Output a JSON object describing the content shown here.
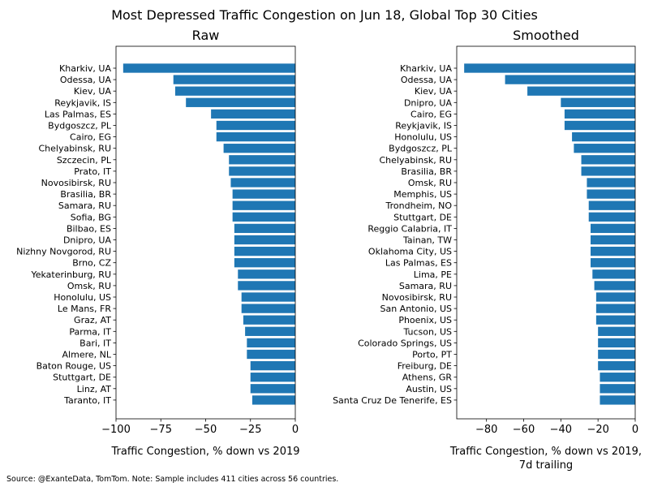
{
  "figure": {
    "title": "Most Depressed Traffic Congestion on Jun 18, Global Top 30 Cities",
    "footnote": "Source: @ExanteData, TomTom.   Note: Sample includes 411 cities across 56 countries.",
    "bar_color": "#1f77b4"
  },
  "chart_data": [
    {
      "type": "bar",
      "orientation": "horizontal",
      "title": "Raw",
      "xlabel": "Traffic Congestion, % down vs 2019",
      "ylabel": "",
      "xlim": [
        -100,
        0
      ],
      "xticks": [
        -100,
        -75,
        -50,
        -25,
        0
      ],
      "categories": [
        "Kharkiv, UA",
        "Odessa, UA",
        "Kiev, UA",
        "Reykjavik, IS",
        "Las Palmas, ES",
        "Bydgoszcz, PL",
        "Cairo, EG",
        "Chelyabinsk, RU",
        "Szczecin, PL",
        "Prato, IT",
        "Novosibirsk, RU",
        "Brasilia, BR",
        "Samara, RU",
        "Sofia, BG",
        "Bilbao, ES",
        "Dnipro, UA",
        "Nizhny Novgorod, RU",
        "Brno, CZ",
        "Yekaterinburg, RU",
        "Omsk, RU",
        "Honolulu, US",
        "Le Mans, FR",
        "Graz, AT",
        "Parma, IT",
        "Bari, IT",
        "Almere, NL",
        "Baton Rouge, US",
        "Stuttgart, DE",
        "Linz, AT",
        "Taranto, IT"
      ],
      "values": [
        -96,
        -68,
        -67,
        -61,
        -47,
        -44,
        -44,
        -40,
        -37,
        -37,
        -36,
        -35,
        -35,
        -35,
        -34,
        -34,
        -34,
        -34,
        -32,
        -32,
        -30,
        -30,
        -29,
        -28,
        -27,
        -27,
        -25,
        -25,
        -25,
        -24
      ]
    },
    {
      "type": "bar",
      "orientation": "horizontal",
      "title": "Smoothed",
      "xlabel": "Traffic Congestion, % down vs 2019,",
      "xlabel_line2": "7d trailing",
      "ylabel": "",
      "xlim": [
        -96,
        0
      ],
      "xticks": [
        -80,
        -60,
        -40,
        -20,
        0
      ],
      "categories": [
        "Kharkiv, UA",
        "Odessa, UA",
        "Kiev, UA",
        "Dnipro, UA",
        "Cairo, EG",
        "Reykjavik, IS",
        "Honolulu, US",
        "Bydgoszcz, PL",
        "Chelyabinsk, RU",
        "Brasilia, BR",
        "Omsk, RU",
        "Memphis, US",
        "Trondheim, NO",
        "Stuttgart, DE",
        "Reggio Calabria, IT",
        "Tainan, TW",
        "Oklahoma City, US",
        "Las Palmas, ES",
        "Lima, PE",
        "Samara, RU",
        "Novosibirsk, RU",
        "San Antonio, US",
        "Phoenix, US",
        "Tucson, US",
        "Colorado Springs, US",
        "Porto, PT",
        "Freiburg, DE",
        "Athens, GR",
        "Austin, US",
        "Santa Cruz De Tenerife, ES"
      ],
      "values": [
        -92,
        -70,
        -58,
        -40,
        -38,
        -38,
        -34,
        -33,
        -29,
        -29,
        -26,
        -26,
        -25,
        -25,
        -24,
        -24,
        -24,
        -24,
        -23,
        -22,
        -21,
        -21,
        -21,
        -20,
        -20,
        -20,
        -20,
        -19,
        -19,
        -19
      ]
    }
  ]
}
